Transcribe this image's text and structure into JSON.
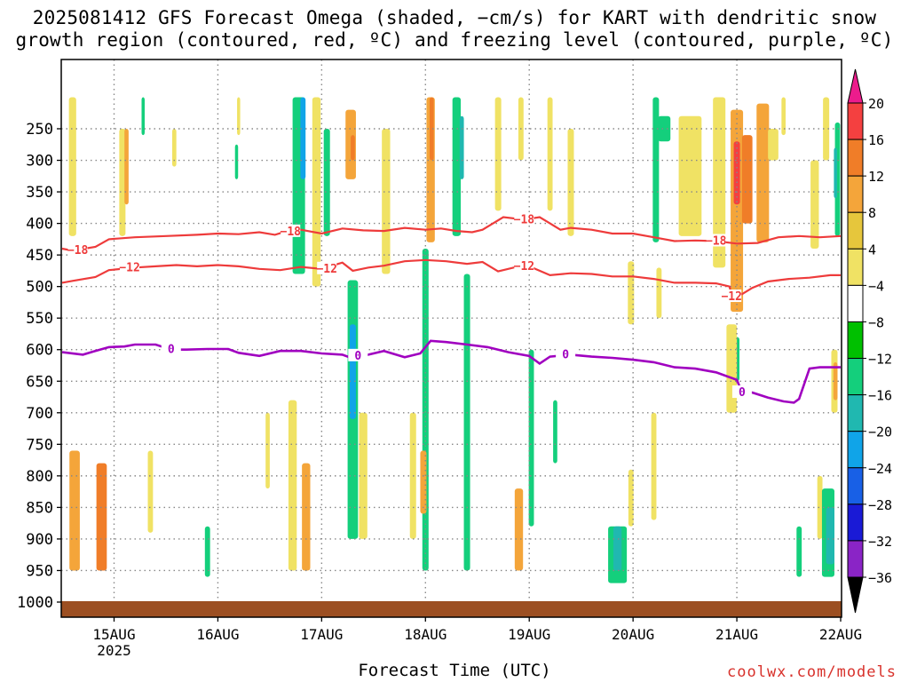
{
  "title_line1": "2025081412 GFS Forecast Omega (shaded, −cm/s) for KART with dendritic snow",
  "title_line2": "growth region (contoured, red, ºC) and freezing level (contoured, purple, ºC)",
  "xaxis_title": "Forecast Time (UTC)",
  "credit": "coolwx.com/models",
  "chart_data": {
    "type": "heatmap",
    "title": "2025081412 GFS Forecast Omega (shaded, −cm/s) for KART with dendritic snow growth region (contoured, red, ºC) and freezing level (contoured, purple, ºC)",
    "xlabel": "Forecast Time (UTC)",
    "ylabel": "",
    "y_axis_reversed": true,
    "x_range": [
      14.5,
      22.0
    ],
    "y_range": [
      200,
      1000
    ],
    "x_ticks": [
      {
        "label": "15AUG",
        "value": 15.0
      },
      {
        "label": "16AUG",
        "value": 16.0
      },
      {
        "label": "17AUG",
        "value": 17.0
      },
      {
        "label": "18AUG",
        "value": 18.0
      },
      {
        "label": "19AUG",
        "value": 19.0
      },
      {
        "label": "20AUG",
        "value": 20.0
      },
      {
        "label": "21AUG",
        "value": 21.0
      },
      {
        "label": "22AUG",
        "value": 22.0
      }
    ],
    "x_sublabel": {
      "label": "2025",
      "value": 15.0
    },
    "y_ticks": [
      250,
      300,
      350,
      400,
      450,
      500,
      550,
      600,
      650,
      700,
      750,
      800,
      850,
      900,
      950,
      1000
    ],
    "grid": true,
    "colorbar": {
      "labels": [
        "20",
        "16",
        "12",
        "8",
        "4",
        "−4",
        "−8",
        "−12",
        "−16",
        "−20",
        "−24",
        "−28",
        "−32",
        "−36"
      ],
      "colors": [
        "#ec1c8c",
        "#f44040",
        "#f07d28",
        "#f4a53a",
        "#e6c63c",
        "#f0e264",
        "#ffffff",
        "#00c000",
        "#14cf7c",
        "#20b8b0",
        "#10a4e8",
        "#1860e6",
        "#1a1ad6",
        "#8a24c6",
        "#a000b8",
        "#a8a8a8",
        "#000000"
      ]
    },
    "contours": [
      {
        "name": "-18",
        "color": "#ee3b3b",
        "label_positions": [
          14.65,
          16.7,
          18.95,
          20.8
        ],
        "points": [
          [
            14.5,
            440
          ],
          [
            14.6,
            443
          ],
          [
            14.82,
            437
          ],
          [
            14.95,
            425
          ],
          [
            15.2,
            422
          ],
          [
            15.5,
            420
          ],
          [
            15.8,
            418
          ],
          [
            16.0,
            416
          ],
          [
            16.2,
            417
          ],
          [
            16.4,
            414
          ],
          [
            16.55,
            418
          ],
          [
            16.65,
            413
          ],
          [
            16.8,
            410
          ],
          [
            17.0,
            416
          ],
          [
            17.2,
            408
          ],
          [
            17.4,
            411
          ],
          [
            17.6,
            412
          ],
          [
            17.8,
            407
          ],
          [
            18.0,
            410
          ],
          [
            18.15,
            408
          ],
          [
            18.3,
            412
          ],
          [
            18.45,
            414
          ],
          [
            18.55,
            410
          ],
          [
            18.75,
            390
          ],
          [
            18.95,
            394
          ],
          [
            19.1,
            390
          ],
          [
            19.2,
            400
          ],
          [
            19.3,
            410
          ],
          [
            19.4,
            407
          ],
          [
            19.6,
            410
          ],
          [
            19.8,
            416
          ],
          [
            20.0,
            416
          ],
          [
            20.2,
            422
          ],
          [
            20.4,
            428
          ],
          [
            20.6,
            427
          ],
          [
            20.8,
            428
          ],
          [
            21.0,
            432
          ],
          [
            21.2,
            431
          ],
          [
            21.4,
            422
          ],
          [
            21.6,
            420
          ],
          [
            21.8,
            422
          ],
          [
            22.0,
            420
          ]
        ]
      },
      {
        "name": "-12",
        "color": "#ee3b3b",
        "label_positions": [
          15.15,
          17.05,
          18.95,
          20.95
        ],
        "points": [
          [
            14.5,
            494
          ],
          [
            14.6,
            491
          ],
          [
            14.82,
            485
          ],
          [
            14.95,
            474
          ],
          [
            15.2,
            470
          ],
          [
            15.4,
            468
          ],
          [
            15.6,
            466
          ],
          [
            15.8,
            468
          ],
          [
            16.0,
            466
          ],
          [
            16.2,
            468
          ],
          [
            16.4,
            472
          ],
          [
            16.6,
            474
          ],
          [
            16.8,
            469
          ],
          [
            17.0,
            472
          ],
          [
            17.2,
            462
          ],
          [
            17.3,
            475
          ],
          [
            17.45,
            470
          ],
          [
            17.6,
            467
          ],
          [
            17.8,
            460
          ],
          [
            18.0,
            458
          ],
          [
            18.2,
            460
          ],
          [
            18.4,
            464
          ],
          [
            18.55,
            461
          ],
          [
            18.7,
            476
          ],
          [
            18.85,
            470
          ],
          [
            19.0,
            468
          ],
          [
            19.2,
            482
          ],
          [
            19.4,
            479
          ],
          [
            19.6,
            480
          ],
          [
            19.8,
            484
          ],
          [
            20.0,
            484
          ],
          [
            20.2,
            488
          ],
          [
            20.4,
            494
          ],
          [
            20.6,
            494
          ],
          [
            20.8,
            495
          ],
          [
            20.93,
            500
          ],
          [
            20.95,
            516
          ],
          [
            21.05,
            512
          ],
          [
            21.15,
            502
          ],
          [
            21.3,
            492
          ],
          [
            21.5,
            488
          ],
          [
            21.7,
            486
          ],
          [
            21.9,
            482
          ],
          [
            22.0,
            482
          ]
        ]
      },
      {
        "name": "0",
        "color": "#a000c0",
        "label_positions": [
          15.55,
          17.35,
          19.35,
          21.05
        ],
        "points": [
          [
            14.5,
            604
          ],
          [
            14.7,
            608
          ],
          [
            14.8,
            603
          ],
          [
            14.95,
            596
          ],
          [
            15.1,
            595
          ],
          [
            15.2,
            592
          ],
          [
            15.4,
            592
          ],
          [
            15.55,
            600
          ],
          [
            15.7,
            600
          ],
          [
            15.9,
            599
          ],
          [
            16.1,
            599
          ],
          [
            16.2,
            605
          ],
          [
            16.4,
            610
          ],
          [
            16.6,
            602
          ],
          [
            16.8,
            602
          ],
          [
            17.0,
            606
          ],
          [
            17.2,
            608
          ],
          [
            17.3,
            614
          ],
          [
            17.4,
            610
          ],
          [
            17.6,
            602
          ],
          [
            17.8,
            612
          ],
          [
            17.95,
            606
          ],
          [
            18.05,
            586
          ],
          [
            18.2,
            588
          ],
          [
            18.4,
            592
          ],
          [
            18.6,
            596
          ],
          [
            18.8,
            604
          ],
          [
            19.0,
            610
          ],
          [
            19.1,
            622
          ],
          [
            19.2,
            611
          ],
          [
            19.4,
            608
          ],
          [
            19.6,
            611
          ],
          [
            19.8,
            613
          ],
          [
            20.0,
            616
          ],
          [
            20.2,
            620
          ],
          [
            20.4,
            628
          ],
          [
            20.6,
            630
          ],
          [
            20.8,
            636
          ],
          [
            21.0,
            648
          ],
          [
            21.05,
            668
          ],
          [
            21.15,
            668
          ],
          [
            21.3,
            676
          ],
          [
            21.45,
            682
          ],
          [
            21.55,
            684
          ],
          [
            21.6,
            678
          ],
          [
            21.7,
            630
          ],
          [
            21.8,
            628
          ],
          [
            22.0,
            628
          ]
        ]
      }
    ],
    "omega_cells": [
      {
        "x": 14.6,
        "p0": 200,
        "p1": 420,
        "w": 0.07,
        "value": 4
      },
      {
        "x": 14.62,
        "p0": 760,
        "p1": 950,
        "w": 0.1,
        "value": 8
      },
      {
        "x": 14.88,
        "p0": 780,
        "p1": 950,
        "w": 0.1,
        "value": 12
      },
      {
        "x": 15.08,
        "p0": 250,
        "p1": 420,
        "w": 0.06,
        "value": 4
      },
      {
        "x": 15.12,
        "p0": 250,
        "p1": 370,
        "w": 0.04,
        "value": 8
      },
      {
        "x": 15.28,
        "p0": 200,
        "p1": 260,
        "w": 0.03,
        "value": -8
      },
      {
        "x": 15.35,
        "p0": 760,
        "p1": 890,
        "w": 0.05,
        "value": 4
      },
      {
        "x": 15.58,
        "p0": 250,
        "p1": 310,
        "w": 0.04,
        "value": 4
      },
      {
        "x": 15.9,
        "p0": 880,
        "p1": 960,
        "w": 0.05,
        "value": -8
      },
      {
        "x": 16.2,
        "p0": 200,
        "p1": 260,
        "w": 0.03,
        "value": 4
      },
      {
        "x": 16.18,
        "p0": 275,
        "p1": 330,
        "w": 0.03,
        "value": -8
      },
      {
        "x": 16.48,
        "p0": 700,
        "p1": 820,
        "w": 0.04,
        "value": 4
      },
      {
        "x": 16.72,
        "p0": 680,
        "p1": 950,
        "w": 0.08,
        "value": 4
      },
      {
        "x": 16.78,
        "p0": 200,
        "p1": 480,
        "w": 0.12,
        "value": -8
      },
      {
        "x": 16.85,
        "p0": 780,
        "p1": 950,
        "w": 0.08,
        "value": 8
      },
      {
        "x": 16.82,
        "p0": 200,
        "p1": 330,
        "w": 0.05,
        "value": -16
      },
      {
        "x": 16.95,
        "p0": 200,
        "p1": 500,
        "w": 0.08,
        "value": 4
      },
      {
        "x": 17.05,
        "p0": 250,
        "p1": 420,
        "w": 0.06,
        "value": -8
      },
      {
        "x": 17.28,
        "p0": 220,
        "p1": 330,
        "w": 0.1,
        "value": 8
      },
      {
        "x": 17.3,
        "p0": 260,
        "p1": 300,
        "w": 0.04,
        "value": 12
      },
      {
        "x": 17.3,
        "p0": 490,
        "p1": 900,
        "w": 0.1,
        "value": -8
      },
      {
        "x": 17.3,
        "p0": 560,
        "p1": 710,
        "w": 0.06,
        "value": -16
      },
      {
        "x": 17.4,
        "p0": 700,
        "p1": 900,
        "w": 0.08,
        "value": 4
      },
      {
        "x": 17.62,
        "p0": 250,
        "p1": 480,
        "w": 0.08,
        "value": 4
      },
      {
        "x": 17.88,
        "p0": 700,
        "p1": 900,
        "w": 0.06,
        "value": 4
      },
      {
        "x": 18.05,
        "p0": 200,
        "p1": 430,
        "w": 0.08,
        "value": 8
      },
      {
        "x": 18.06,
        "p0": 200,
        "p1": 300,
        "w": 0.04,
        "value": 12
      },
      {
        "x": 18.0,
        "p0": 440,
        "p1": 950,
        "w": 0.06,
        "value": -8
      },
      {
        "x": 17.98,
        "p0": 760,
        "p1": 860,
        "w": 0.06,
        "value": 8
      },
      {
        "x": 18.3,
        "p0": 200,
        "p1": 420,
        "w": 0.08,
        "value": -8
      },
      {
        "x": 18.35,
        "p0": 230,
        "p1": 330,
        "w": 0.04,
        "value": -12
      },
      {
        "x": 18.4,
        "p0": 480,
        "p1": 950,
        "w": 0.06,
        "value": -8
      },
      {
        "x": 18.7,
        "p0": 200,
        "p1": 380,
        "w": 0.06,
        "value": 4
      },
      {
        "x": 18.92,
        "p0": 200,
        "p1": 300,
        "w": 0.05,
        "value": 4
      },
      {
        "x": 19.02,
        "p0": 600,
        "p1": 880,
        "w": 0.05,
        "value": -8
      },
      {
        "x": 18.9,
        "p0": 820,
        "p1": 950,
        "w": 0.08,
        "value": 8
      },
      {
        "x": 19.2,
        "p0": 200,
        "p1": 380,
        "w": 0.05,
        "value": 4
      },
      {
        "x": 19.25,
        "p0": 680,
        "p1": 780,
        "w": 0.04,
        "value": -8
      },
      {
        "x": 19.4,
        "p0": 250,
        "p1": 420,
        "w": 0.06,
        "value": 4
      },
      {
        "x": 19.85,
        "p0": 880,
        "p1": 970,
        "w": 0.18,
        "value": -8
      },
      {
        "x": 19.85,
        "p0": 880,
        "p1": 950,
        "w": 0.08,
        "value": -12
      },
      {
        "x": 19.98,
        "p0": 790,
        "p1": 880,
        "w": 0.05,
        "value": 4
      },
      {
        "x": 19.98,
        "p0": 460,
        "p1": 560,
        "w": 0.06,
        "value": 4
      },
      {
        "x": 20.2,
        "p0": 700,
        "p1": 870,
        "w": 0.05,
        "value": 4
      },
      {
        "x": 20.22,
        "p0": 200,
        "p1": 430,
        "w": 0.06,
        "value": -8
      },
      {
        "x": 20.25,
        "p0": 470,
        "p1": 550,
        "w": 0.05,
        "value": 4
      },
      {
        "x": 20.3,
        "p0": 230,
        "p1": 270,
        "w": 0.12,
        "value": -8
      },
      {
        "x": 20.55,
        "p0": 230,
        "p1": 420,
        "w": 0.22,
        "value": 4
      },
      {
        "x": 20.83,
        "p0": 200,
        "p1": 470,
        "w": 0.12,
        "value": 4
      },
      {
        "x": 21.0,
        "p0": 220,
        "p1": 540,
        "w": 0.12,
        "value": 8
      },
      {
        "x": 21.1,
        "p0": 260,
        "p1": 400,
        "w": 0.1,
        "value": 12
      },
      {
        "x": 21.0,
        "p0": 270,
        "p1": 370,
        "w": 0.06,
        "value": 16
      },
      {
        "x": 21.0,
        "p0": 580,
        "p1": 650,
        "w": 0.05,
        "value": -8
      },
      {
        "x": 20.95,
        "p0": 560,
        "p1": 700,
        "w": 0.1,
        "value": 4
      },
      {
        "x": 21.25,
        "p0": 210,
        "p1": 430,
        "w": 0.12,
        "value": 8
      },
      {
        "x": 21.35,
        "p0": 250,
        "p1": 300,
        "w": 0.1,
        "value": 4
      },
      {
        "x": 21.45,
        "p0": 200,
        "p1": 260,
        "w": 0.04,
        "value": 4
      },
      {
        "x": 21.6,
        "p0": 880,
        "p1": 960,
        "w": 0.05,
        "value": -8
      },
      {
        "x": 21.75,
        "p0": 300,
        "p1": 440,
        "w": 0.08,
        "value": 4
      },
      {
        "x": 21.86,
        "p0": 200,
        "p1": 300,
        "w": 0.06,
        "value": 4
      },
      {
        "x": 21.97,
        "p0": 240,
        "p1": 420,
        "w": 0.05,
        "value": -8
      },
      {
        "x": 21.95,
        "p0": 280,
        "p1": 360,
        "w": 0.03,
        "value": -12
      },
      {
        "x": 21.8,
        "p0": 800,
        "p1": 900,
        "w": 0.05,
        "value": 4
      },
      {
        "x": 21.88,
        "p0": 820,
        "p1": 960,
        "w": 0.12,
        "value": -8
      },
      {
        "x": 21.9,
        "p0": 850,
        "p1": 940,
        "w": 0.08,
        "value": -12
      },
      {
        "x": 21.94,
        "p0": 600,
        "p1": 700,
        "w": 0.06,
        "value": 4
      },
      {
        "x": 21.95,
        "p0": 620,
        "p1": 680,
        "w": 0.04,
        "value": 8
      }
    ]
  }
}
